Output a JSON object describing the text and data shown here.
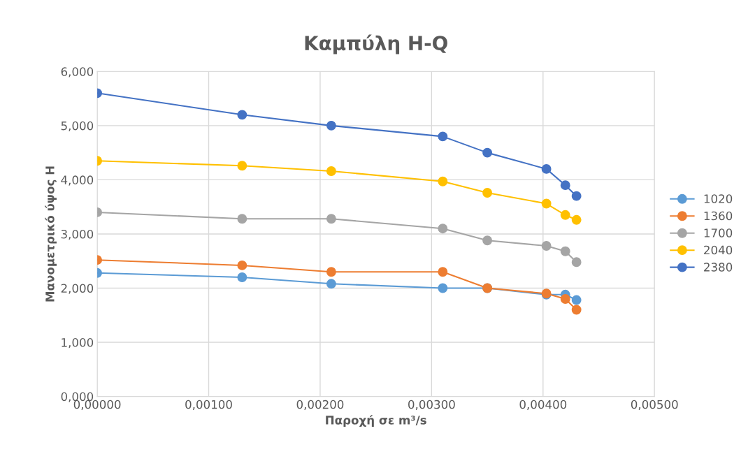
{
  "chart_data": {
    "type": "line",
    "title": "Καμπύλη H-Q",
    "xlabel": "Παροχή σε m³/s",
    "ylabel": "Μανομετρικό ύψος H",
    "x": [
      0,
      0.0013,
      0.0021,
      0.0031,
      0.0035,
      0.00403,
      0.0042,
      0.0043
    ],
    "series": [
      {
        "name": "1020",
        "color": "#5b9bd5",
        "values": [
          2.28,
          2.2,
          2.08,
          2.0,
          2.0,
          1.88,
          1.88,
          1.78
        ]
      },
      {
        "name": "1360",
        "color": "#ed7d31",
        "values": [
          2.52,
          2.42,
          2.3,
          2.3,
          2.0,
          1.9,
          1.8,
          1.6
        ]
      },
      {
        "name": "1700",
        "color": "#a5a5a5",
        "values": [
          3.4,
          3.28,
          3.28,
          3.1,
          2.88,
          2.78,
          2.68,
          2.48
        ]
      },
      {
        "name": "2040",
        "color": "#ffc000",
        "values": [
          4.35,
          4.26,
          4.16,
          3.97,
          3.76,
          3.56,
          3.35,
          3.26
        ]
      },
      {
        "name": "2380",
        "color": "#4472c4",
        "values": [
          5.6,
          5.2,
          5.0,
          4.8,
          4.5,
          4.2,
          3.9,
          3.7
        ]
      }
    ],
    "xlim": [
      0,
      0.005
    ],
    "xticks": [
      {
        "value": 0,
        "label": "0,00000"
      },
      {
        "value": 0.001,
        "label": "0,00100"
      },
      {
        "value": 0.002,
        "label": "0,00200"
      },
      {
        "value": 0.003,
        "label": "0,00300"
      },
      {
        "value": 0.004,
        "label": "0,00400"
      },
      {
        "value": 0.005,
        "label": "0,00500"
      }
    ],
    "ylim": [
      0,
      6
    ],
    "yticks": [
      {
        "value": 0,
        "label": "0,000"
      },
      {
        "value": 1,
        "label": "1,000"
      },
      {
        "value": 2,
        "label": "2,000"
      },
      {
        "value": 3,
        "label": "3,000"
      },
      {
        "value": 4,
        "label": "4,000"
      },
      {
        "value": 5,
        "label": "5,000"
      },
      {
        "value": 6,
        "label": "6,000"
      }
    ],
    "grid": true,
    "legend": "right",
    "marker": "circle",
    "line_style": "solid"
  }
}
